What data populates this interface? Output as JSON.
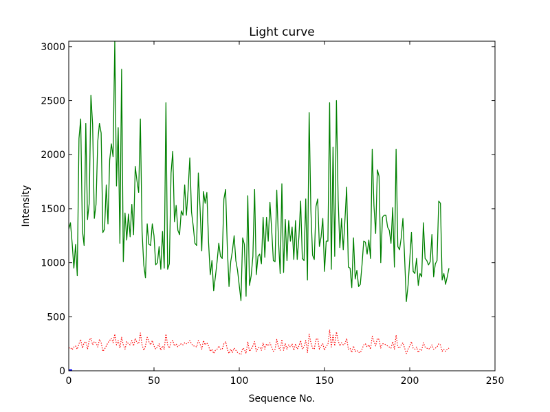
{
  "chart_data": {
    "type": "line",
    "title": "Light curve",
    "xlabel": "Sequence No.",
    "ylabel": "Intensity",
    "xlim": [
      0,
      250
    ],
    "ylim": [
      0,
      3050
    ],
    "xticks": [
      0,
      50,
      100,
      150,
      200,
      250
    ],
    "yticks": [
      0,
      500,
      1000,
      1500,
      2000,
      2500,
      3000
    ],
    "grid": false,
    "legend": "none",
    "series": [
      {
        "color": "#008000",
        "style": "solid",
        "values": [
          1310,
          1370,
          1180,
          950,
          1170,
          880,
          2150,
          2330,
          1300,
          1160,
          2290,
          1400,
          1550,
          2550,
          2280,
          1410,
          1540,
          2120,
          2290,
          2200,
          1280,
          1310,
          1720,
          1360,
          1950,
          2100,
          1980,
          3050,
          1710,
          2250,
          1180,
          2790,
          1010,
          1460,
          1210,
          1450,
          1240,
          1540,
          1260,
          1890,
          1760,
          1650,
          2330,
          1290,
          980,
          860,
          1360,
          1170,
          1160,
          1360,
          1250,
          980,
          1000,
          1150,
          940,
          1290,
          950,
          2480,
          940,
          990,
          1830,
          2030,
          1380,
          1530,
          1300,
          1260,
          1480,
          1440,
          1720,
          1440,
          1670,
          1970,
          1470,
          1340,
          1180,
          1160,
          1830,
          1510,
          1110,
          1660,
          1550,
          1650,
          1190,
          890,
          1020,
          740,
          870,
          1010,
          1180,
          1060,
          1040,
          1590,
          1680,
          1140,
          780,
          1010,
          1110,
          1250,
          1020,
          930,
          790,
          650,
          1230,
          1170,
          690,
          1620,
          790,
          880,
          1060,
          1680,
          890,
          1060,
          1080,
          990,
          1420,
          1050,
          1420,
          1200,
          1560,
          1310,
          1020,
          1010,
          1670,
          1210,
          900,
          1730,
          910,
          1400,
          1020,
          1390,
          1200,
          1330,
          1030,
          1390,
          1030,
          1240,
          1570,
          1040,
          1020,
          1590,
          840,
          2390,
          1490,
          1070,
          1030,
          1520,
          1590,
          1150,
          1240,
          1410,
          920,
          1200,
          1200,
          2480,
          940,
          2070,
          1060,
          2500,
          1590,
          1140,
          1410,
          1120,
          1400,
          1700,
          960,
          950,
          770,
          1230,
          850,
          930,
          780,
          800,
          980,
          1200,
          1190,
          1080,
          1210,
          1040,
          2050,
          1530,
          1270,
          1860,
          1800,
          1000,
          1420,
          1440,
          1440,
          1330,
          1300,
          1180,
          1510,
          960,
          2050,
          1150,
          1120,
          1230,
          1410,
          1040,
          640,
          790,
          1030,
          1280,
          920,
          900,
          1040,
          790,
          900,
          870,
          1370,
          1040,
          1020,
          980,
          1010,
          1260,
          870,
          990,
          1020,
          1570,
          1550,
          840,
          900,
          800,
          870,
          950
        ]
      },
      {
        "color": "#ff0000",
        "style": "dotted",
        "values": [
          210,
          215,
          195,
          220,
          230,
          200,
          250,
          290,
          210,
          260,
          270,
          200,
          280,
          305,
          240,
          270,
          260,
          220,
          290,
          260,
          180,
          200,
          230,
          260,
          280,
          300,
          260,
          340,
          240,
          280,
          210,
          310,
          240,
          200,
          270,
          250,
          240,
          280,
          230,
          300,
          260,
          250,
          350,
          240,
          190,
          230,
          310,
          270,
          240,
          280,
          230,
          200,
          220,
          250,
          190,
          230,
          200,
          340,
          240,
          210,
          270,
          280,
          230,
          250,
          220,
          240,
          250,
          240,
          260,
          250,
          260,
          280,
          250,
          230,
          230,
          220,
          280,
          250,
          200,
          280,
          240,
          260,
          230,
          180,
          200,
          160,
          190,
          200,
          230,
          200,
          200,
          250,
          270,
          200,
          160,
          200,
          170,
          210,
          190,
          170,
          160,
          150,
          210,
          200,
          160,
          270,
          180,
          200,
          230,
          270,
          180,
          210,
          220,
          190,
          260,
          200,
          250,
          230,
          260,
          220,
          180,
          200,
          290,
          220,
          190,
          290,
          190,
          250,
          200,
          240,
          220,
          250,
          190,
          250,
          200,
          230,
          280,
          200,
          220,
          280,
          170,
          340,
          260,
          210,
          200,
          290,
          300,
          200,
          230,
          250,
          190,
          230,
          240,
          380,
          220,
          330,
          230,
          360,
          280,
          230,
          260,
          240,
          250,
          300,
          200,
          210,
          170,
          230,
          180,
          190,
          170,
          170,
          200,
          240,
          250,
          220,
          240,
          200,
          320,
          270,
          230,
          300,
          290,
          210,
          250,
          250,
          240,
          230,
          220,
          210,
          270,
          200,
          330,
          220,
          210,
          240,
          260,
          210,
          160,
          200,
          230,
          270,
          210,
          200,
          220,
          170,
          200,
          190,
          260,
          220,
          210,
          200,
          210,
          240,
          200,
          210,
          220,
          250,
          240,
          180,
          200,
          180,
          200,
          210
        ]
      },
      {
        "color": "#0000ff",
        "style": "solid",
        "values": [
          5,
          5,
          5
        ]
      }
    ]
  }
}
